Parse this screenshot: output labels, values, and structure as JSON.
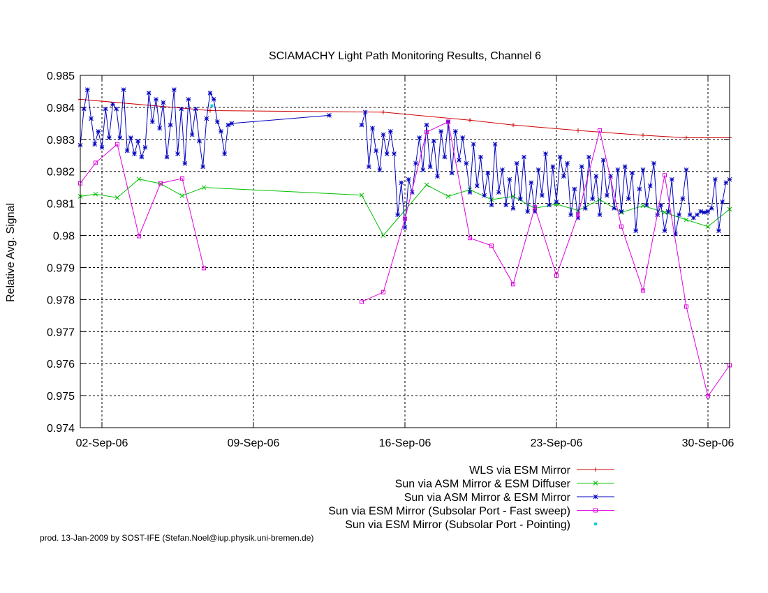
{
  "chart_data": {
    "type": "line",
    "title": "SCIAMACHY Light Path Monitoring Results, Channel 6",
    "ylabel": "Relative Avg. Signal",
    "xlabel": "",
    "xlim": [
      "2006-09-01",
      "2006-10-01"
    ],
    "ylim": [
      0.974,
      0.985
    ],
    "yticks": [
      0.974,
      0.975,
      0.976,
      0.977,
      0.978,
      0.979,
      0.98,
      0.981,
      0.982,
      0.983,
      0.984,
      0.985
    ],
    "ytick_labels": [
      "0.974",
      "0.975",
      "0.976",
      "0.977",
      "0.978",
      "0.979",
      "0.98",
      "0.981",
      "0.982",
      "0.983",
      "0.984",
      "0.985"
    ],
    "xticks": [
      "2006-09-02",
      "2006-09-09",
      "2006-09-16",
      "2006-09-23",
      "2006-09-30"
    ],
    "xtick_labels": [
      "02-Sep-06",
      "09-Sep-06",
      "16-Sep-06",
      "23-Sep-06",
      "30-Sep-06"
    ],
    "grid": true,
    "legend_position": "bottom-right",
    "series": [
      {
        "name": "WLS via ESM Mirror",
        "color": "#d00000",
        "marker": "plus",
        "points": [
          [
            "2006-09-01",
            0.98425
          ],
          [
            "2006-09-07",
            0.9839
          ],
          [
            "2006-09-15",
            0.98385
          ],
          [
            "2006-09-19",
            0.9836
          ],
          [
            "2006-09-21",
            0.98345
          ],
          [
            "2006-09-24",
            0.98328
          ],
          [
            "2006-09-27",
            0.98313
          ],
          [
            "2006-09-29",
            0.98305
          ],
          [
            "2006-10-01",
            0.98305
          ]
        ]
      },
      {
        "name": "Sun via ASM Mirror & ESM Diffuser",
        "color": "#00c000",
        "marker": "cross",
        "points": [
          [
            "2006-09-01",
            0.98122
          ],
          [
            "2006-09-01 17:00",
            0.98129
          ],
          [
            "2006-09-02 17:00",
            0.98118
          ],
          [
            "2006-09-03 17:00",
            0.98176
          ],
          [
            "2006-09-04 17:00",
            0.98162
          ],
          [
            "2006-09-05 17:00",
            0.98124
          ],
          [
            "2006-09-06 17:00",
            0.9815
          ],
          [
            "2006-09-14",
            0.98126
          ],
          [
            "2006-09-15",
            0.98
          ],
          [
            "2006-09-17",
            0.98158
          ],
          [
            "2006-09-18",
            0.98122
          ],
          [
            "2006-09-19",
            0.98143
          ],
          [
            "2006-09-20",
            0.98112
          ],
          [
            "2006-09-21",
            0.98122
          ],
          [
            "2006-09-22",
            0.98085
          ],
          [
            "2006-09-23",
            0.98098
          ],
          [
            "2006-09-24",
            0.98078
          ],
          [
            "2006-09-25",
            0.98112
          ],
          [
            "2006-09-26",
            0.98072
          ],
          [
            "2006-09-27",
            0.98093
          ],
          [
            "2006-09-28",
            0.98072
          ],
          [
            "2006-09-29",
            0.98049
          ],
          [
            "2006-09-30",
            0.98028
          ],
          [
            "2006-10-01",
            0.98082
          ]
        ]
      },
      {
        "name": "Sun via ASM Mirror & ESM Mirror",
        "color": "#0000c0",
        "marker": "star",
        "segments": [
          [
            [
              "2006-09-01 00:00",
              0.98282
            ],
            [
              "2006-09-01 04:00",
              0.98395
            ],
            [
              "2006-09-01 08:00",
              0.98455
            ],
            [
              "2006-09-01 12:00",
              0.98365
            ],
            [
              "2006-09-01 16:00",
              0.98285
            ],
            [
              "2006-09-01 20:00",
              0.98325
            ],
            [
              "2006-09-02 00:00",
              0.98275
            ],
            [
              "2006-09-02 04:00",
              0.98395
            ],
            [
              "2006-09-02 08:00",
              0.98305
            ],
            [
              "2006-09-02 12:00",
              0.9841
            ],
            [
              "2006-09-02 16:00",
              0.98395
            ],
            [
              "2006-09-02 20:00",
              0.98305
            ],
            [
              "2006-09-03 00:00",
              0.98455
            ],
            [
              "2006-09-03 04:00",
              0.98265
            ],
            [
              "2006-09-03 08:00",
              0.98305
            ],
            [
              "2006-09-03 12:00",
              0.98255
            ],
            [
              "2006-09-03 16:00",
              0.98295
            ],
            [
              "2006-09-03 20:00",
              0.98245
            ],
            [
              "2006-09-04 00:00",
              0.98275
            ],
            [
              "2006-09-04 04:00",
              0.98445
            ],
            [
              "2006-09-04 08:00",
              0.98355
            ],
            [
              "2006-09-04 12:00",
              0.98425
            ],
            [
              "2006-09-04 16:00",
              0.98335
            ],
            [
              "2006-09-04 20:00",
              0.98415
            ],
            [
              "2006-09-05 00:00",
              0.98245
            ],
            [
              "2006-09-05 04:00",
              0.98345
            ],
            [
              "2006-09-05 08:00",
              0.98455
            ],
            [
              "2006-09-05 12:00",
              0.98255
            ],
            [
              "2006-09-05 16:00",
              0.98395
            ],
            [
              "2006-09-05 20:00",
              0.98225
            ],
            [
              "2006-09-06 00:00",
              0.98425
            ],
            [
              "2006-09-06 04:00",
              0.98315
            ],
            [
              "2006-09-06 08:00",
              0.98395
            ],
            [
              "2006-09-06 12:00",
              0.98295
            ],
            [
              "2006-09-06 16:00",
              0.98215
            ],
            [
              "2006-09-06 20:00",
              0.98365
            ],
            [
              "2006-09-07 00:00",
              0.98445
            ],
            [
              "2006-09-07 04:00",
              0.98425
            ],
            [
              "2006-09-07 08:00",
              0.98355
            ],
            [
              "2006-09-07 12:00",
              0.98325
            ],
            [
              "2006-09-07 16:00",
              0.98255
            ],
            [
              "2006-09-07 20:00",
              0.98345
            ],
            [
              "2006-09-08 00:00",
              0.9835
            ],
            [
              "2006-09-12 12:00",
              0.98375
            ]
          ],
          [
            [
              "2006-09-14 00:00",
              0.98345
            ],
            [
              "2006-09-14 04:00",
              0.98385
            ],
            [
              "2006-09-14 08:00",
              0.98215
            ],
            [
              "2006-09-14 12:00",
              0.98335
            ],
            [
              "2006-09-14 16:00",
              0.98265
            ],
            [
              "2006-09-14 20:00",
              0.98205
            ],
            [
              "2006-09-15 00:00",
              0.98315
            ],
            [
              "2006-09-15 04:00",
              0.98255
            ],
            [
              "2006-09-15 08:00",
              0.98325
            ],
            [
              "2006-09-15 12:00",
              0.98255
            ],
            [
              "2006-09-15 16:00",
              0.98065
            ],
            [
              "2006-09-15 20:00",
              0.98165
            ],
            [
              "2006-09-16 00:00",
              0.98025
            ],
            [
              "2006-09-16 04:00",
              0.98175
            ],
            [
              "2006-09-16 08:00",
              0.98135
            ],
            [
              "2006-09-16 12:00",
              0.98225
            ],
            [
              "2006-09-16 16:00",
              0.98305
            ],
            [
              "2006-09-16 20:00",
              0.98205
            ],
            [
              "2006-09-17 00:00",
              0.98345
            ],
            [
              "2006-09-17 04:00",
              0.98215
            ],
            [
              "2006-09-17 08:00",
              0.98295
            ],
            [
              "2006-09-17 12:00",
              0.98185
            ],
            [
              "2006-09-17 16:00",
              0.98325
            ],
            [
              "2006-09-17 20:00",
              0.98245
            ],
            [
              "2006-09-18 00:00",
              0.98355
            ],
            [
              "2006-09-18 04:00",
              0.98195
            ],
            [
              "2006-09-18 08:00",
              0.98325
            ],
            [
              "2006-09-18 12:00",
              0.98235
            ],
            [
              "2006-09-18 16:00",
              0.98305
            ],
            [
              "2006-09-18 20:00",
              0.98225
            ],
            [
              "2006-09-19 00:00",
              0.98135
            ],
            [
              "2006-09-19 04:00",
              0.98285
            ],
            [
              "2006-09-19 08:00",
              0.98155
            ],
            [
              "2006-09-19 12:00",
              0.98245
            ],
            [
              "2006-09-19 16:00",
              0.98125
            ],
            [
              "2006-09-19 20:00",
              0.98195
            ],
            [
              "2006-09-20 00:00",
              0.98095
            ],
            [
              "2006-09-20 04:00",
              0.98285
            ],
            [
              "2006-09-20 08:00",
              0.98135
            ],
            [
              "2006-09-20 12:00",
              0.98205
            ],
            [
              "2006-09-20 16:00",
              0.98095
            ],
            [
              "2006-09-20 20:00",
              0.98175
            ],
            [
              "2006-09-21 00:00",
              0.98085
            ],
            [
              "2006-09-21 04:00",
              0.98225
            ],
            [
              "2006-09-21 08:00",
              0.98115
            ],
            [
              "2006-09-21 12:00",
              0.98245
            ],
            [
              "2006-09-21 16:00",
              0.98075
            ],
            [
              "2006-09-21 20:00",
              0.98165
            ],
            [
              "2006-09-22 00:00",
              0.98075
            ],
            [
              "2006-09-22 04:00",
              0.98205
            ],
            [
              "2006-09-22 08:00",
              0.98125
            ],
            [
              "2006-09-22 12:00",
              0.98255
            ],
            [
              "2006-09-22 16:00",
              0.98095
            ],
            [
              "2006-09-22 20:00",
              0.98215
            ],
            [
              "2006-09-23 00:00",
              0.98105
            ],
            [
              "2006-09-23 04:00",
              0.98245
            ],
            [
              "2006-09-23 08:00",
              0.98185
            ],
            [
              "2006-09-23 12:00",
              0.98225
            ],
            [
              "2006-09-23 16:00",
              0.98065
            ],
            [
              "2006-09-23 20:00",
              0.98145
            ],
            [
              "2006-09-24 00:00",
              0.98055
            ],
            [
              "2006-09-24 04:00",
              0.98215
            ],
            [
              "2006-09-24 08:00",
              0.98085
            ],
            [
              "2006-09-24 12:00",
              0.98245
            ],
            [
              "2006-09-24 16:00",
              0.98115
            ],
            [
              "2006-09-24 20:00",
              0.98185
            ],
            [
              "2006-09-25 00:00",
              0.98065
            ],
            [
              "2006-09-25 04:00",
              0.98235
            ],
            [
              "2006-09-25 08:00",
              0.98125
            ],
            [
              "2006-09-25 12:00",
              0.98185
            ],
            [
              "2006-09-25 16:00",
              0.98085
            ],
            [
              "2006-09-25 20:00",
              0.98205
            ],
            [
              "2006-09-26 00:00",
              0.98075
            ],
            [
              "2006-09-26 04:00",
              0.98215
            ],
            [
              "2006-09-26 08:00",
              0.98115
            ],
            [
              "2006-09-26 12:00",
              0.98195
            ],
            [
              "2006-09-26 16:00",
              0.98015
            ],
            [
              "2006-09-26 20:00",
              0.98145
            ],
            [
              "2006-09-27 00:00",
              0.98205
            ],
            [
              "2006-09-27 04:00",
              0.98095
            ],
            [
              "2006-09-27 08:00",
              0.98155
            ],
            [
              "2006-09-27 12:00",
              0.98225
            ],
            [
              "2006-09-27 16:00",
              0.98065
            ],
            [
              "2006-09-27 20:00",
              0.98095
            ],
            [
              "2006-09-28 00:00",
              0.98015
            ],
            [
              "2006-09-28 04:00",
              0.98075
            ],
            [
              "2006-09-28 08:00",
              0.98175
            ],
            [
              "2006-09-28 12:00",
              0.98005
            ],
            [
              "2006-09-28 16:00",
              0.98065
            ],
            [
              "2006-09-28 20:00",
              0.98115
            ],
            [
              "2006-09-29 00:00",
              0.98205
            ],
            [
              "2006-09-29 04:00",
              0.98065
            ],
            [
              "2006-09-29 08:00",
              0.98055
            ],
            [
              "2006-09-29 12:00",
              0.98065
            ],
            [
              "2006-09-29 16:00",
              0.98075
            ],
            [
              "2006-09-29 20:00",
              0.98072
            ],
            [
              "2006-09-30 00:00",
              0.98075
            ],
            [
              "2006-09-30 04:00",
              0.98085
            ],
            [
              "2006-09-30 08:00",
              0.98175
            ],
            [
              "2006-09-30 12:00",
              0.98015
            ],
            [
              "2006-09-30 16:00",
              0.98105
            ],
            [
              "2006-09-30 20:00",
              0.98165
            ],
            [
              "2006-10-01 00:00",
              0.98175
            ]
          ]
        ]
      },
      {
        "name": "Sun via ESM Mirror (Subsolar Port - Fast sweep)",
        "color": "#e000e0",
        "marker": "square",
        "segments": [
          [
            [
              "2006-09-01",
              0.98163
            ],
            [
              "2006-09-01 17:00",
              0.98227
            ],
            [
              "2006-09-02 17:00",
              0.98285
            ],
            [
              "2006-09-03 17:00",
              0.97998
            ],
            [
              "2006-09-04 17:00",
              0.98163
            ],
            [
              "2006-09-05 17:00",
              0.98178
            ],
            [
              "2006-09-06 17:00",
              0.97898
            ]
          ],
          [
            [
              "2006-09-14",
              0.97793
            ],
            [
              "2006-09-15",
              0.97823
            ],
            [
              "2006-09-16",
              0.98052
            ],
            [
              "2006-09-17",
              0.98323
            ],
            [
              "2006-09-18",
              0.98355
            ],
            [
              "2006-09-19",
              0.97992
            ],
            [
              "2006-09-20",
              0.97968
            ],
            [
              "2006-09-21",
              0.97848
            ],
            [
              "2006-09-22",
              0.98088
            ],
            [
              "2006-09-23",
              0.97875
            ],
            [
              "2006-09-24",
              0.98065
            ],
            [
              "2006-09-25",
              0.98328
            ],
            [
              "2006-09-26",
              0.98028
            ],
            [
              "2006-09-27",
              0.97828
            ],
            [
              "2006-09-28",
              0.98188
            ],
            [
              "2006-09-29",
              0.97778
            ],
            [
              "2006-09-30",
              0.97498
            ],
            [
              "2006-10-01",
              0.97595
            ]
          ]
        ]
      },
      {
        "name": "Sun via ESM Mirror (Subsolar Port - Pointing)",
        "color": "#00d0e0",
        "marker": "dot",
        "points": [
          [
            "2006-09-07 02:00",
            0.98405
          ]
        ]
      }
    ]
  },
  "footer": "prod. 13-Jan-2009 by SOST-IFE (Stefan.Noel@iup.physik.uni-bremen.de)"
}
